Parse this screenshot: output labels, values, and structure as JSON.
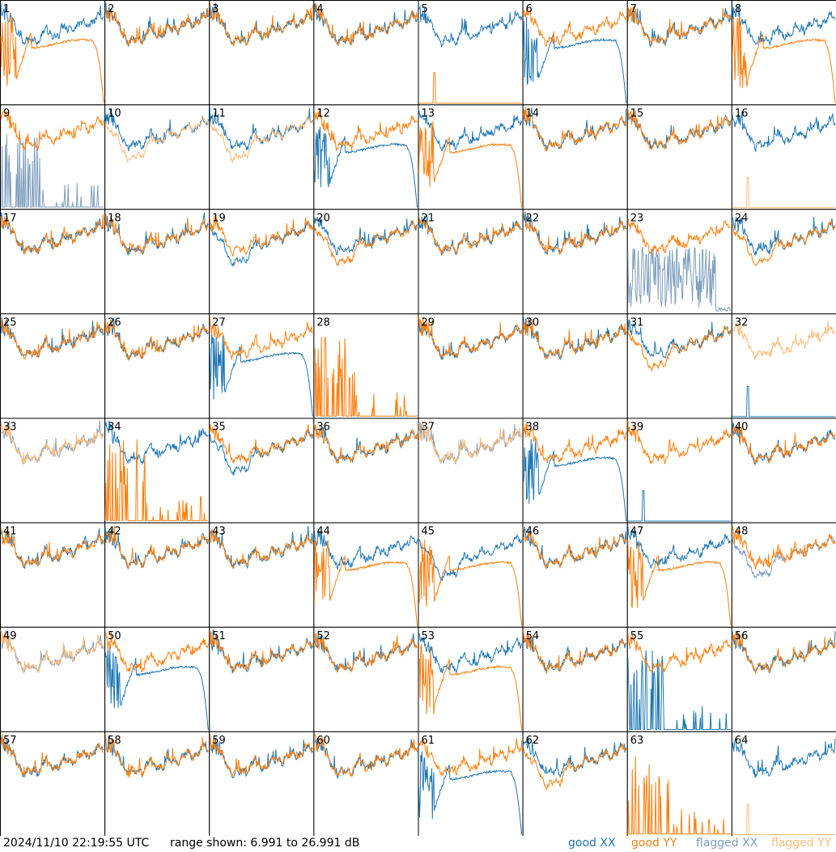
{
  "footer": {
    "timestamp": "2024/11/10 22:19:55 UTC",
    "range_text": "range shown: 6.991 to 26.991 dB",
    "legend": {
      "good_xx": "good XX",
      "good_yy": "good YY",
      "flagged_xx": "flagged XX",
      "flagged_yy": "flagged YY"
    }
  },
  "colors": {
    "good_xx": "#1f77b4",
    "good_yy": "#ff7f0e",
    "flagged_xx": "#7f9fbf",
    "flagged_yy": "#ffbb78",
    "grid_line": "#000000",
    "background": "#ffffff"
  },
  "chart_data": {
    "type": "line",
    "title": "",
    "layout": "8x8 small multiples",
    "ylim_db": [
      6.991,
      26.991
    ],
    "series_names": [
      "good XX",
      "good YY",
      "flagged XX",
      "flagged YY"
    ],
    "panels": [
      {
        "id": "1",
        "xx": "good",
        "yy": "good",
        "xx_shape": "normal",
        "yy_shape": "rolloff"
      },
      {
        "id": "2",
        "xx": "good",
        "yy": "good",
        "xx_shape": "normal",
        "yy_shape": "normal"
      },
      {
        "id": "3",
        "xx": "good",
        "yy": "good",
        "xx_shape": "normal",
        "yy_shape": "normal"
      },
      {
        "id": "4",
        "xx": "good",
        "yy": "good",
        "xx_shape": "normal",
        "yy_shape": "normal"
      },
      {
        "id": "5",
        "xx": "good",
        "yy": "good",
        "xx_shape": "normal",
        "yy_shape": "dead"
      },
      {
        "id": "6",
        "xx": "good",
        "yy": "good",
        "xx_shape": "rolloff",
        "yy_shape": "normal"
      },
      {
        "id": "7",
        "xx": "good",
        "yy": "good",
        "xx_shape": "normal",
        "yy_shape": "normal"
      },
      {
        "id": "8",
        "xx": "good",
        "yy": "good",
        "xx_shape": "normal",
        "yy_shape": "rolloff"
      },
      {
        "id": "9",
        "xx": "flagged",
        "yy": "good",
        "xx_shape": "spikes",
        "yy_shape": "normal"
      },
      {
        "id": "10",
        "xx": "good",
        "yy": "flagged",
        "xx_shape": "normal",
        "yy_shape": "low"
      },
      {
        "id": "11",
        "xx": "good",
        "yy": "flagged",
        "xx_shape": "normal",
        "yy_shape": "low"
      },
      {
        "id": "12",
        "xx": "good",
        "yy": "good",
        "xx_shape": "rolloff",
        "yy_shape": "normal"
      },
      {
        "id": "13",
        "xx": "good",
        "yy": "good",
        "xx_shape": "normal",
        "yy_shape": "rolloff"
      },
      {
        "id": "14",
        "xx": "good",
        "yy": "good",
        "xx_shape": "normal",
        "yy_shape": "normal"
      },
      {
        "id": "15",
        "xx": "good",
        "yy": "good",
        "xx_shape": "normal",
        "yy_shape": "normal"
      },
      {
        "id": "16",
        "xx": "good",
        "yy": "flagged",
        "xx_shape": "normal",
        "yy_shape": "dead"
      },
      {
        "id": "17",
        "xx": "good",
        "yy": "good",
        "xx_shape": "normal",
        "yy_shape": "normal"
      },
      {
        "id": "18",
        "xx": "good",
        "yy": "good",
        "xx_shape": "normal",
        "yy_shape": "normal"
      },
      {
        "id": "19",
        "xx": "good",
        "yy": "good",
        "xx_shape": "low",
        "yy_shape": "normal"
      },
      {
        "id": "20",
        "xx": "good",
        "yy": "good",
        "xx_shape": "normal",
        "yy_shape": "low"
      },
      {
        "id": "21",
        "xx": "good",
        "yy": "good",
        "xx_shape": "normal",
        "yy_shape": "normal"
      },
      {
        "id": "22",
        "xx": "good",
        "yy": "good",
        "xx_shape": "normal",
        "yy_shape": "normal"
      },
      {
        "id": "23",
        "xx": "flagged",
        "yy": "good",
        "xx_shape": "noisy",
        "yy_shape": "normal"
      },
      {
        "id": "24",
        "xx": "good",
        "yy": "good",
        "xx_shape": "normal",
        "yy_shape": "low"
      },
      {
        "id": "25",
        "xx": "good",
        "yy": "good",
        "xx_shape": "normal",
        "yy_shape": "normal"
      },
      {
        "id": "26",
        "xx": "good",
        "yy": "good",
        "xx_shape": "normal",
        "yy_shape": "normal"
      },
      {
        "id": "27",
        "xx": "good",
        "yy": "good",
        "xx_shape": "rolloff",
        "yy_shape": "normal"
      },
      {
        "id": "28",
        "xx": "good",
        "yy": "good",
        "xx_shape": "none",
        "yy_shape": "spikes"
      },
      {
        "id": "29",
        "xx": "good",
        "yy": "good",
        "xx_shape": "normal",
        "yy_shape": "normal"
      },
      {
        "id": "30",
        "xx": "good",
        "yy": "good",
        "xx_shape": "normal",
        "yy_shape": "normal"
      },
      {
        "id": "31",
        "xx": "good",
        "yy": "good",
        "xx_shape": "normal",
        "yy_shape": "low"
      },
      {
        "id": "32",
        "xx": "good",
        "yy": "flagged",
        "xx_shape": "dead",
        "yy_shape": "normal"
      },
      {
        "id": "33",
        "xx": "flagged",
        "yy": "flagged",
        "xx_shape": "normal",
        "yy_shape": "normal"
      },
      {
        "id": "34",
        "xx": "good",
        "yy": "good",
        "xx_shape": "normal",
        "yy_shape": "spikes"
      },
      {
        "id": "35",
        "xx": "good",
        "yy": "good",
        "xx_shape": "low",
        "yy_shape": "normal"
      },
      {
        "id": "36",
        "xx": "good",
        "yy": "good",
        "xx_shape": "normal",
        "yy_shape": "normal"
      },
      {
        "id": "37",
        "xx": "flagged",
        "yy": "flagged",
        "xx_shape": "normal",
        "yy_shape": "normal"
      },
      {
        "id": "38",
        "xx": "good",
        "yy": "good",
        "xx_shape": "rolloff",
        "yy_shape": "normal"
      },
      {
        "id": "39",
        "xx": "good",
        "yy": "good",
        "xx_shape": "dead",
        "yy_shape": "normal"
      },
      {
        "id": "40",
        "xx": "good",
        "yy": "good",
        "xx_shape": "normal",
        "yy_shape": "normal"
      },
      {
        "id": "41",
        "xx": "good",
        "yy": "good",
        "xx_shape": "normal",
        "yy_shape": "normal"
      },
      {
        "id": "42",
        "xx": "good",
        "yy": "good",
        "xx_shape": "normal",
        "yy_shape": "normal"
      },
      {
        "id": "43",
        "xx": "good",
        "yy": "good",
        "xx_shape": "normal",
        "yy_shape": "normal"
      },
      {
        "id": "44",
        "xx": "good",
        "yy": "good",
        "xx_shape": "normal",
        "yy_shape": "rolloff"
      },
      {
        "id": "45",
        "xx": "good",
        "yy": "good",
        "xx_shape": "low",
        "yy_shape": "rolloff"
      },
      {
        "id": "46",
        "xx": "good",
        "yy": "good",
        "xx_shape": "normal",
        "yy_shape": "normal"
      },
      {
        "id": "47",
        "xx": "good",
        "yy": "good",
        "xx_shape": "normal",
        "yy_shape": "rolloff"
      },
      {
        "id": "48",
        "xx": "flagged",
        "yy": "good",
        "xx_shape": "low",
        "yy_shape": "normal"
      },
      {
        "id": "49",
        "xx": "flagged",
        "yy": "flagged",
        "xx_shape": "normal",
        "yy_shape": "normal"
      },
      {
        "id": "50",
        "xx": "good",
        "yy": "good",
        "xx_shape": "rolloff",
        "yy_shape": "normal"
      },
      {
        "id": "51",
        "xx": "good",
        "yy": "good",
        "xx_shape": "normal",
        "yy_shape": "normal"
      },
      {
        "id": "52",
        "xx": "good",
        "yy": "good",
        "xx_shape": "normal",
        "yy_shape": "normal"
      },
      {
        "id": "53",
        "xx": "good",
        "yy": "good",
        "xx_shape": "normal",
        "yy_shape": "rolloff"
      },
      {
        "id": "54",
        "xx": "good",
        "yy": "good",
        "xx_shape": "normal",
        "yy_shape": "normal"
      },
      {
        "id": "55",
        "xx": "good",
        "yy": "good",
        "xx_shape": "spikes",
        "yy_shape": "normal"
      },
      {
        "id": "56",
        "xx": "good",
        "yy": "good",
        "xx_shape": "normal",
        "yy_shape": "normal"
      },
      {
        "id": "57",
        "xx": "good",
        "yy": "good",
        "xx_shape": "normal",
        "yy_shape": "normal"
      },
      {
        "id": "58",
        "xx": "good",
        "yy": "good",
        "xx_shape": "normal",
        "yy_shape": "normal"
      },
      {
        "id": "59",
        "xx": "good",
        "yy": "good",
        "xx_shape": "normal",
        "yy_shape": "normal"
      },
      {
        "id": "60",
        "xx": "good",
        "yy": "good",
        "xx_shape": "normal",
        "yy_shape": "normal"
      },
      {
        "id": "61",
        "xx": "good",
        "yy": "good",
        "xx_shape": "rolloff",
        "yy_shape": "normal"
      },
      {
        "id": "62",
        "xx": "good",
        "yy": "good",
        "xx_shape": "normal",
        "yy_shape": "low"
      },
      {
        "id": "63",
        "xx": "good",
        "yy": "good",
        "xx_shape": "none",
        "yy_shape": "spikes"
      },
      {
        "id": "64",
        "xx": "good",
        "yy": "flagged",
        "xx_shape": "normal",
        "yy_shape": "dead"
      }
    ]
  }
}
